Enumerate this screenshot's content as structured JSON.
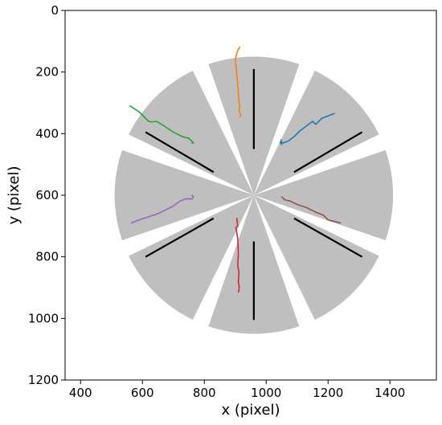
{
  "chart_data": {
    "type": "line",
    "title": "",
    "xlabel": "x (pixel)",
    "ylabel": "y (pixel)",
    "xlim": [
      350,
      1550
    ],
    "ylim": [
      1200,
      0
    ],
    "y_inverted": true,
    "grid": false,
    "xticks": [
      400,
      600,
      800,
      1000,
      1200,
      1400
    ],
    "yticks": [
      0,
      200,
      400,
      600,
      800,
      1000,
      1200
    ],
    "arena": {
      "center": [
        960,
        600
      ],
      "outer_radius": 450,
      "arm_count": 8,
      "arm_angles_deg": [
        0,
        45,
        90,
        135,
        180,
        225,
        270,
        315
      ],
      "arm_half_width_deg": 19,
      "fill_color": "#bfbfbf"
    },
    "arm_lines": [
      {
        "x": [
          960,
          960
        ],
        "y": [
          190,
          450
        ]
      },
      {
        "x": [
          1310,
          1090
        ],
        "y": [
          395,
          525
        ]
      },
      {
        "x": [
          1310,
          1090
        ],
        "y": [
          800,
          675
        ]
      },
      {
        "x": [
          960,
          960
        ],
        "y": [
          750,
          1005
        ]
      },
      {
        "x": [
          830,
          610
        ],
        "y": [
          675,
          800
        ]
      },
      {
        "x": [
          830,
          610
        ],
        "y": [
          525,
          395
        ]
      }
    ],
    "arm_line_color": "#000000",
    "series": [
      {
        "color": "#1f77b4",
        "x": [
          1220,
          1180,
          1160,
          1150,
          1130,
          1110,
          1090,
          1070,
          1055,
          1045,
          1050,
          1048
        ],
        "y": [
          335,
          350,
          370,
          360,
          375,
          390,
          410,
          425,
          430,
          428,
          435,
          420
        ]
      },
      {
        "color": "#ff7f0e",
        "x": [
          915,
          910,
          905,
          900,
          903,
          905,
          908,
          910,
          912,
          915,
          912,
          918,
          915
        ],
        "y": [
          120,
          125,
          140,
          160,
          185,
          210,
          240,
          270,
          295,
          310,
          325,
          340,
          345
        ]
      },
      {
        "color": "#2ca02c",
        "x": [
          560,
          590,
          620,
          630,
          645,
          670,
          700,
          730,
          750,
          760,
          765,
          760
        ],
        "y": [
          310,
          330,
          360,
          362,
          360,
          375,
          395,
          410,
          415,
          425,
          430,
          430
        ]
      },
      {
        "color": "#d62728",
        "x": [
          905,
          908,
          902,
          908,
          910,
          908,
          912,
          910,
          913,
          910
        ],
        "y": [
          675,
          700,
          705,
          740,
          790,
          830,
          850,
          880,
          900,
          915
        ]
      },
      {
        "color": "#9467bd",
        "x": [
          565,
          590,
          620,
          650,
          670,
          700,
          720,
          740,
          760,
          765,
          760
        ],
        "y": [
          690,
          680,
          670,
          660,
          650,
          635,
          620,
          612,
          612,
          605,
          600
        ]
      },
      {
        "color": "#8c564b",
        "x": [
          1050,
          1060,
          1080,
          1100,
          1130,
          1160,
          1185,
          1200,
          1220,
          1240
        ],
        "y": [
          605,
          615,
          620,
          630,
          640,
          655,
          665,
          680,
          685,
          690
        ]
      }
    ]
  }
}
